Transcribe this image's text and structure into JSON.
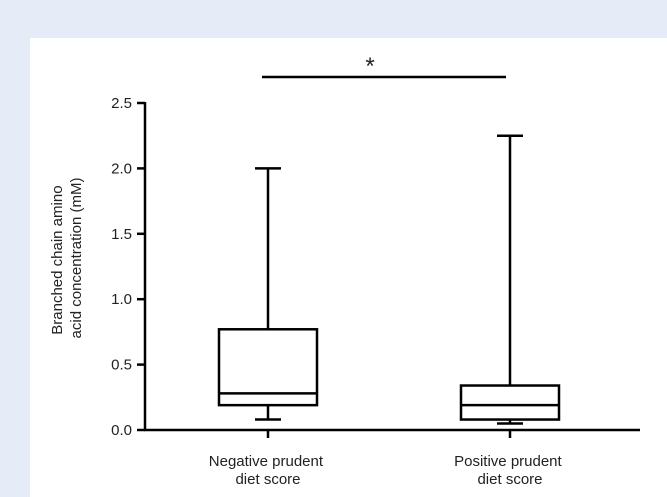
{
  "chart_data": {
    "type": "box",
    "ylabel": "Branched chain amino acid concentration (mM)",
    "categories": [
      "Negative prudent diet score",
      "Positive prudent diet score"
    ],
    "boxes": [
      {
        "min": 0.08,
        "q1": 0.19,
        "median": 0.28,
        "q3": 0.77,
        "max": 2.0
      },
      {
        "min": 0.05,
        "q1": 0.08,
        "median": 0.19,
        "q3": 0.34,
        "max": 2.25
      }
    ],
    "annotation": "*",
    "color": "#000000",
    "ylim": [
      0,
      2.5
    ],
    "yticks": [
      {
        "value": 0,
        "label": "0.0"
      },
      0.5,
      {
        "value": 1,
        "label": "1.0"
      },
      1.5,
      {
        "value": 2,
        "label": "2.0"
      },
      2.5
    ]
  }
}
